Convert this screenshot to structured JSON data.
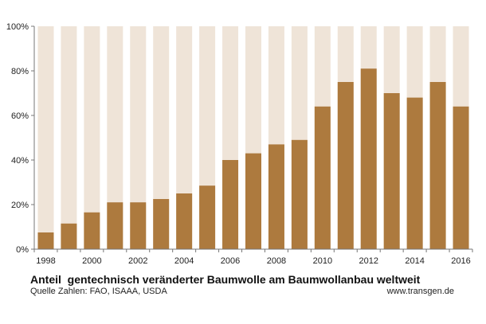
{
  "chart_data": {
    "type": "bar",
    "title": "Anteil  gentechnisch veränderter Baumwolle am Baumwollanbau weltweit",
    "source": "Quelle Zahlen: FAO, ISAAA, USDA",
    "website": "www.transgen.de",
    "xlabel": "",
    "ylabel": "",
    "categories": [
      "1998",
      "1999",
      "2000",
      "2001",
      "2002",
      "2003",
      "2004",
      "2005",
      "2006",
      "2007",
      "2008",
      "2009",
      "2010",
      "2011",
      "2012",
      "2013",
      "2014",
      "2015",
      "2016"
    ],
    "x_tick_labels": [
      "1998",
      "",
      "2000",
      "",
      "2002",
      "",
      "2004",
      "",
      "2006",
      "",
      "2008",
      "",
      "2010",
      "",
      "2012",
      "",
      "2014",
      "",
      "2016"
    ],
    "values": [
      7.5,
      11.5,
      16.5,
      21,
      21,
      22.5,
      25,
      28.5,
      40,
      43,
      47,
      49,
      64,
      75,
      81,
      70,
      68,
      75,
      64
    ],
    "ylim": [
      0,
      100
    ],
    "y_ticks": [
      0,
      20,
      40,
      60,
      80,
      100
    ],
    "y_tick_labels": [
      "0%",
      "20%",
      "40%",
      "60%",
      "80%",
      "100%"
    ],
    "grid": false,
    "legend": "none",
    "colors": {
      "bar": "#ad7a3e",
      "background_bar": "#efe4d8",
      "axis": "#777777"
    }
  }
}
